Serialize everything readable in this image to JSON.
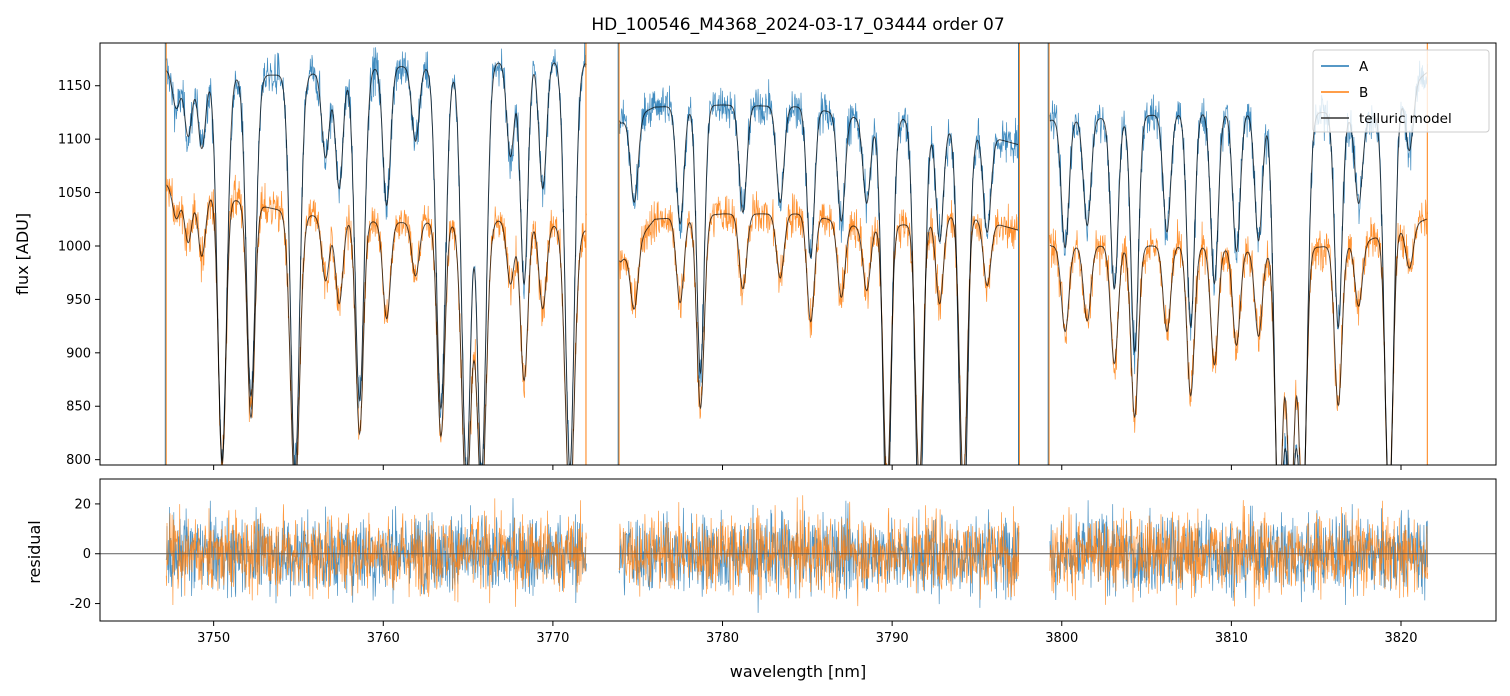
{
  "chart_data": [
    {
      "panel": "top",
      "type": "line",
      "title": "HD_100546_M4368_2024-03-17_03444  order 07",
      "xlabel": "",
      "ylabel": "flux [ADU]",
      "xlim": [
        3743.3,
        3825.6
      ],
      "ylim": [
        795,
        1190
      ],
      "yticks": [
        800,
        850,
        900,
        950,
        1000,
        1050,
        1100,
        1150
      ],
      "xticks": [
        3750,
        3760,
        3770,
        3780,
        3790,
        3800,
        3810,
        3820
      ],
      "legend": {
        "placement": "top-right",
        "entries": [
          "A",
          "B",
          "telluric model"
        ]
      },
      "segments": [
        [
          3747.2,
          3772.0
        ],
        [
          3773.9,
          3797.5
        ],
        [
          3799.3,
          3821.6
        ]
      ],
      "series": [
        {
          "name": "A",
          "color": "#1f77b4",
          "continuum": [
            [
              3747.2,
              1165
            ],
            [
              3750,
              1160
            ],
            [
              3755,
              1160
            ],
            [
              3760,
              1168
            ],
            [
              3765,
              1168
            ],
            [
              3768,
              1175
            ],
            [
              3771.9,
              1172
            ],
            [
              3774,
              1115
            ],
            [
              3776,
              1130
            ],
            [
              3780,
              1132
            ],
            [
              3785,
              1130
            ],
            [
              3788,
              1120
            ],
            [
              3791,
              1120
            ],
            [
              3794,
              1110
            ],
            [
              3797.4,
              1095
            ],
            [
              3799.4,
              1118
            ],
            [
              3803,
              1120
            ],
            [
              3808,
              1125
            ],
            [
              3812,
              1125
            ],
            [
              3816,
              1125
            ],
            [
              3818,
              1118
            ],
            [
              3821.5,
              1162
            ]
          ],
          "noise": 10
        },
        {
          "name": "B",
          "color": "#ff7f0e",
          "continuum": [
            [
              3747.2,
              1058
            ],
            [
              3750,
              1048
            ],
            [
              3752,
              1040
            ],
            [
              3755,
              1030
            ],
            [
              3760,
              1022
            ],
            [
              3765,
              1022
            ],
            [
              3768,
              1025
            ],
            [
              3771.9,
              1015
            ],
            [
              3774,
              985
            ],
            [
              3776,
              1025
            ],
            [
              3780,
              1030
            ],
            [
              3785,
              1030
            ],
            [
              3788,
              1018
            ],
            [
              3791,
              1020
            ],
            [
              3794,
              1030
            ],
            [
              3797.4,
              1015
            ],
            [
              3799.4,
              1000
            ],
            [
              3803,
              1000
            ],
            [
              3808,
              1000
            ],
            [
              3812,
              995
            ],
            [
              3816,
              1000
            ],
            [
              3818,
              1005
            ],
            [
              3821.5,
              1025
            ]
          ],
          "noise": 10
        },
        {
          "name": "telluric model",
          "color": "#000000",
          "note": "smooth model through A and B"
        }
      ],
      "absorption_lines": [
        {
          "x": 3747.8,
          "depthA": 35,
          "depthB": 30
        },
        {
          "x": 3748.5,
          "depthA": 60,
          "depthB": 50
        },
        {
          "x": 3749.3,
          "depthA": 70,
          "depthB": 60
        },
        {
          "x": 3750.5,
          "depthA": 360,
          "depthB": 250
        },
        {
          "x": 3752.2,
          "depthA": 300,
          "depthB": 200
        },
        {
          "x": 3754.8,
          "depthA": 370,
          "depthB": 260
        },
        {
          "x": 3756.6,
          "depthA": 80,
          "depthB": 60
        },
        {
          "x": 3757.4,
          "depthA": 110,
          "depthB": 80
        },
        {
          "x": 3758.6,
          "depthA": 310,
          "depthB": 200
        },
        {
          "x": 3760.2,
          "depthA": 130,
          "depthB": 90
        },
        {
          "x": 3761.9,
          "depthA": 70,
          "depthB": 50
        },
        {
          "x": 3763.4,
          "depthA": 320,
          "depthB": 200
        },
        {
          "x": 3764.9,
          "depthA": 380,
          "depthB": 260
        },
        {
          "x": 3765.8,
          "depthA": 380,
          "depthB": 260
        },
        {
          "x": 3767.5,
          "depthA": 90,
          "depthB": 60
        },
        {
          "x": 3768.3,
          "depthA": 210,
          "depthB": 150
        },
        {
          "x": 3769.4,
          "depthA": 120,
          "depthB": 80
        },
        {
          "x": 3771.0,
          "depthA": 380,
          "depthB": 260
        },
        {
          "x": 3774.8,
          "depthA": 80,
          "depthB": 60
        },
        {
          "x": 3777.5,
          "depthA": 110,
          "depthB": 80
        },
        {
          "x": 3778.7,
          "depthA": 250,
          "depthB": 180
        },
        {
          "x": 3781.2,
          "depthA": 100,
          "depthB": 70
        },
        {
          "x": 3783.4,
          "depthA": 90,
          "depthB": 60
        },
        {
          "x": 3785.2,
          "depthA": 140,
          "depthB": 100
        },
        {
          "x": 3787.0,
          "depthA": 100,
          "depthB": 70
        },
        {
          "x": 3788.5,
          "depthA": 80,
          "depthB": 60
        },
        {
          "x": 3789.7,
          "depthA": 380,
          "depthB": 240
        },
        {
          "x": 3791.6,
          "depthA": 380,
          "depthB": 240
        },
        {
          "x": 3792.8,
          "depthA": 110,
          "depthB": 80
        },
        {
          "x": 3794.2,
          "depthA": 380,
          "depthB": 250
        },
        {
          "x": 3795.6,
          "depthA": 90,
          "depthB": 60
        },
        {
          "x": 3800.2,
          "depthA": 120,
          "depthB": 80
        },
        {
          "x": 3801.5,
          "depthA": 100,
          "depthB": 70
        },
        {
          "x": 3803.1,
          "depthA": 160,
          "depthB": 110
        },
        {
          "x": 3804.3,
          "depthA": 220,
          "depthB": 160
        },
        {
          "x": 3806.2,
          "depthA": 110,
          "depthB": 80
        },
        {
          "x": 3807.6,
          "depthA": 200,
          "depthB": 140
        },
        {
          "x": 3809.0,
          "depthA": 160,
          "depthB": 110
        },
        {
          "x": 3810.3,
          "depthA": 130,
          "depthB": 90
        },
        {
          "x": 3811.6,
          "depthA": 120,
          "depthB": 80
        },
        {
          "x": 3812.8,
          "depthA": 380,
          "depthB": 250
        },
        {
          "x": 3813.5,
          "depthA": 350,
          "depthB": 240
        },
        {
          "x": 3814.2,
          "depthA": 380,
          "depthB": 250
        },
        {
          "x": 3816.3,
          "depthA": 200,
          "depthB": 150
        },
        {
          "x": 3817.5,
          "depthA": 80,
          "depthB": 60
        },
        {
          "x": 3819.3,
          "depthA": 380,
          "depthB": 250
        },
        {
          "x": 3820.5,
          "depthA": 60,
          "depthB": 40
        }
      ],
      "spikes": [
        {
          "x": 3747.15,
          "series": "A"
        },
        {
          "x": 3747.2,
          "series": "B"
        },
        {
          "x": 3771.95,
          "series": "B"
        },
        {
          "x": 3773.85,
          "series": "A"
        },
        {
          "x": 3773.9,
          "series": "B"
        },
        {
          "x": 3797.45,
          "series": "A"
        },
        {
          "x": 3797.5,
          "series": "B"
        },
        {
          "x": 3799.2,
          "series": "A"
        },
        {
          "x": 3799.25,
          "series": "B"
        },
        {
          "x": 3821.55,
          "series": "B"
        }
      ]
    },
    {
      "panel": "bottom",
      "type": "line",
      "title": "",
      "xlabel": "wavelength [nm]",
      "ylabel": "residual",
      "xlim": [
        3743.3,
        3825.6
      ],
      "ylim": [
        -27,
        30
      ],
      "yticks": [
        -20,
        0,
        20
      ],
      "xticks": [
        3750,
        3760,
        3770,
        3780,
        3790,
        3800,
        3810,
        3820
      ],
      "zero_line": 0,
      "segments": [
        [
          3747.2,
          3772.0
        ],
        [
          3773.9,
          3797.5
        ],
        [
          3799.3,
          3821.6
        ]
      ],
      "series": [
        {
          "name": "A",
          "color": "#1f77b4",
          "noise_sigma": 8
        },
        {
          "name": "B",
          "color": "#ff7f0e",
          "noise_sigma": 8
        }
      ]
    }
  ]
}
